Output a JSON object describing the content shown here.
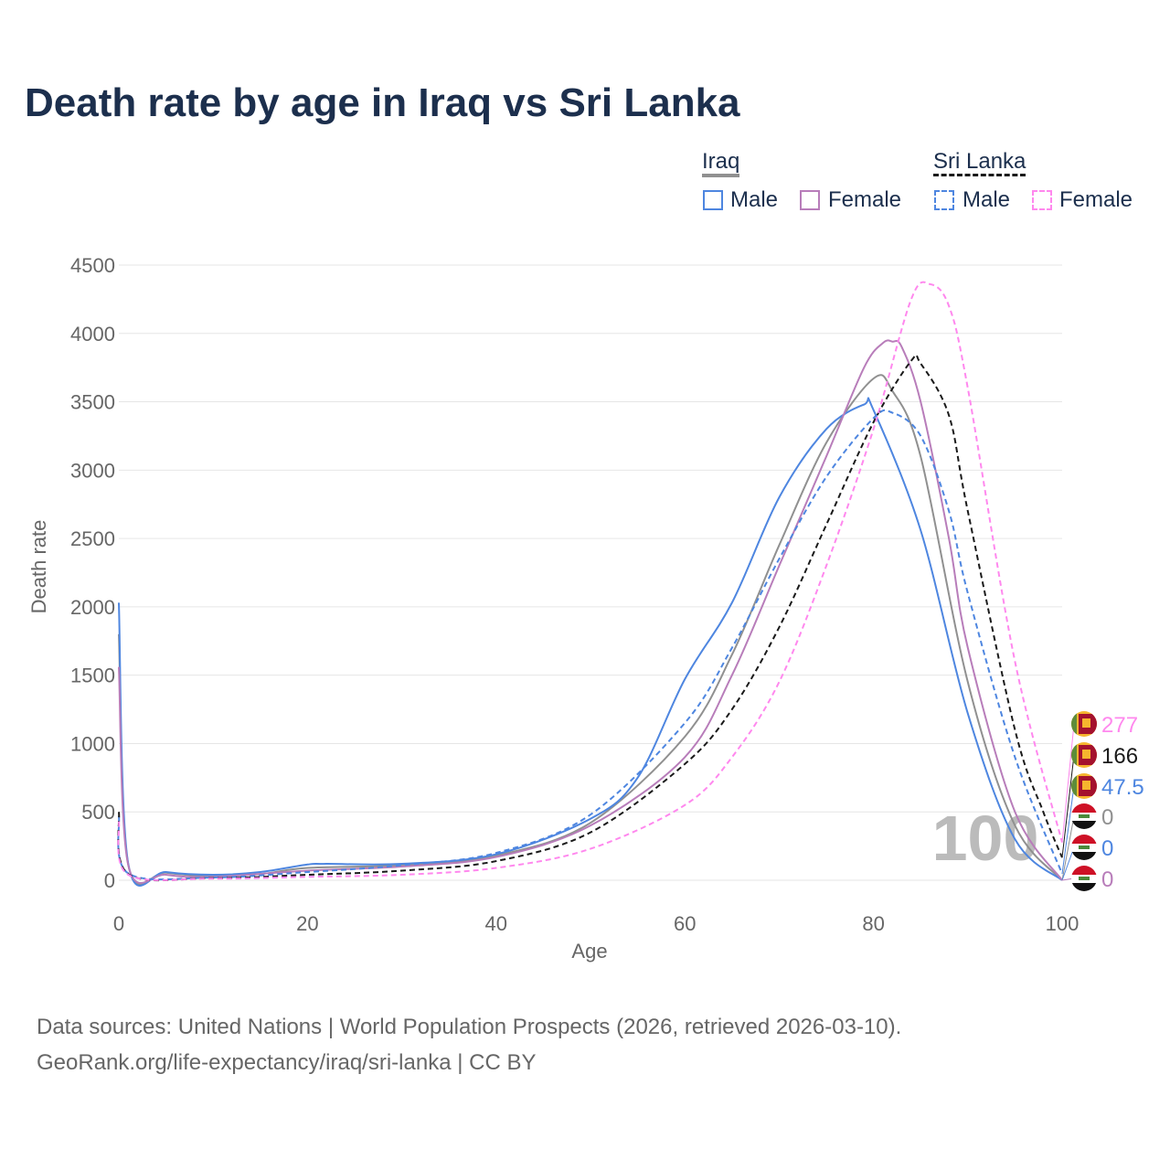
{
  "title": "Death rate by age in Iraq vs Sri Lanka",
  "legend": {
    "groups": [
      {
        "name": "Iraq",
        "items": [
          "Male",
          "Female"
        ]
      },
      {
        "name": "Sri Lanka",
        "items": [
          "Male",
          "Female"
        ]
      }
    ]
  },
  "watermark": "100",
  "source_line1": "Data sources: United Nations | World Population Prospects (2026, retrieved 2026-03-10).",
  "source_line2": "GeoRank.org/life-expectancy/iraq/sri-lanka | CC BY",
  "chart_data": {
    "type": "line",
    "title": "Death rate by age in Iraq vs Sri Lanka",
    "xlabel": "Age",
    "ylabel": "Death rate",
    "xlim": [
      0,
      100
    ],
    "ylim": [
      0,
      4500
    ],
    "xticks": [
      0,
      20,
      40,
      60,
      80,
      100
    ],
    "yticks": [
      0,
      500,
      1000,
      1500,
      2000,
      2500,
      3000,
      3500,
      4000,
      4500
    ],
    "grid": true,
    "legend_placement": "top-right",
    "series": [
      {
        "name": "Iraq Total",
        "color": "#909090",
        "dash": false,
        "end_label": "0",
        "flag": "iraq",
        "x": [
          0,
          1,
          5,
          10,
          15,
          20,
          30,
          40,
          50,
          60,
          65,
          70,
          75,
          80,
          82,
          85,
          90,
          95,
          100
        ],
        "y": [
          1800,
          115,
          55,
          30,
          45,
          90,
          110,
          180,
          420,
          1050,
          1650,
          2450,
          3200,
          3670,
          3580,
          3100,
          1450,
          400,
          0
        ]
      },
      {
        "name": "Iraq Male",
        "color": "#4e86e0",
        "dash": false,
        "end_label": "0",
        "flag": "iraq",
        "x": [
          0,
          1,
          5,
          10,
          15,
          20,
          22,
          30,
          40,
          50,
          55,
          60,
          65,
          70,
          75,
          79,
          80,
          85,
          90,
          95,
          100
        ],
        "y": [
          2030,
          120,
          60,
          40,
          60,
          115,
          120,
          120,
          190,
          450,
          750,
          1470,
          2030,
          2800,
          3300,
          3480,
          3440,
          2560,
          1220,
          300,
          0
        ]
      },
      {
        "name": "Iraq Female",
        "color": "#b87dba",
        "dash": false,
        "end_label": "0",
        "flag": "iraq",
        "x": [
          0,
          1,
          5,
          10,
          20,
          30,
          40,
          50,
          60,
          65,
          70,
          75,
          79,
          81,
          82,
          83,
          85,
          88,
          90,
          95,
          100
        ],
        "y": [
          1560,
          110,
          40,
          25,
          70,
          100,
          170,
          400,
          900,
          1500,
          2300,
          3100,
          3750,
          3930,
          3940,
          3900,
          3500,
          2500,
          1700,
          500,
          0
        ]
      },
      {
        "name": "Sri Lanka Male",
        "color": "#4e86e0",
        "dash": true,
        "end_label": "47.5",
        "flag": "sri-lanka",
        "x": [
          0,
          1,
          10,
          20,
          30,
          40,
          50,
          60,
          65,
          70,
          75,
          80,
          82,
          85,
          88,
          90,
          95,
          100
        ],
        "y": [
          470,
          50,
          20,
          60,
          110,
          200,
          480,
          1150,
          1700,
          2350,
          2950,
          3380,
          3420,
          3250,
          2700,
          2100,
          900,
          47.5
        ]
      },
      {
        "name": "Sri Lanka Total",
        "color": "#1a1a1a",
        "dash": true,
        "end_label": "166",
        "flag": "sri-lanka",
        "x": [
          0,
          1,
          10,
          20,
          30,
          40,
          50,
          60,
          65,
          70,
          75,
          80,
          84,
          85,
          88,
          90,
          95,
          98,
          100
        ],
        "y": [
          500,
          45,
          15,
          40,
          70,
          140,
          350,
          850,
          1250,
          1850,
          2600,
          3350,
          3800,
          3780,
          3400,
          2700,
          1100,
          500,
          166
        ]
      },
      {
        "name": "Sri Lanka Female",
        "color": "#ff88ee",
        "dash": true,
        "end_label": "277",
        "flag": "sri-lanka",
        "x": [
          0,
          1,
          10,
          20,
          30,
          40,
          50,
          60,
          65,
          70,
          75,
          80,
          84,
          86,
          88,
          90,
          95,
          100
        ],
        "y": [
          430,
          40,
          12,
          25,
          40,
          90,
          230,
          550,
          900,
          1450,
          2300,
          3300,
          4250,
          4360,
          4200,
          3600,
          1600,
          277
        ]
      }
    ]
  }
}
